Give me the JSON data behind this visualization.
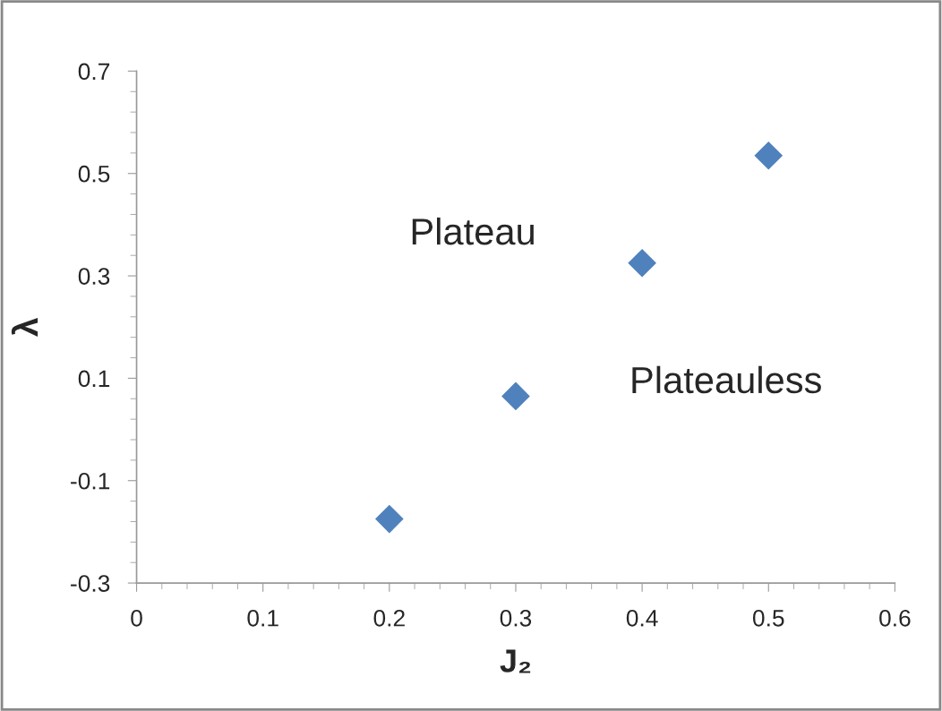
{
  "chart_data": {
    "type": "scatter",
    "xlabel": "J₂",
    "ylabel": "λ",
    "x": [
      0.2,
      0.3,
      0.4,
      0.5
    ],
    "series": [
      {
        "color": "#4f81bd",
        "values": [
          -0.175,
          0.065,
          0.325,
          0.535
        ]
      }
    ],
    "marker": "diamond",
    "grid": false,
    "legend": false,
    "xlim": [
      0,
      0.6
    ],
    "xticks": [
      0,
      0.1,
      0.2,
      0.3,
      0.4,
      0.5,
      0.6
    ],
    "ylim": [
      -0.3,
      0.7
    ],
    "yticks": [
      -0.3,
      -0.1,
      0.1,
      0.3,
      0.5,
      0.7
    ],
    "annotations": [
      "Plateau",
      "Plateauless"
    ]
  }
}
